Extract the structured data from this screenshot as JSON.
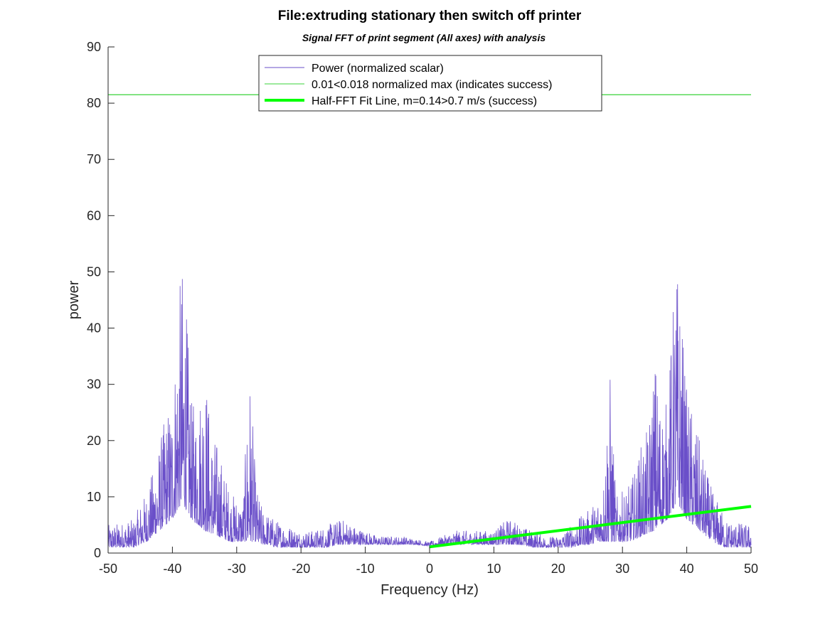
{
  "chart_data": {
    "type": "line",
    "title": "File:extruding stationary then switch off printer",
    "subtitle": "Signal FFT of print segment (All axes) with analysis",
    "xlabel": "Frequency (Hz)",
    "ylabel": "power",
    "xlim": [
      -50,
      50
    ],
    "ylim": [
      0,
      90
    ],
    "xticks": [
      -50,
      -40,
      -30,
      -20,
      -10,
      0,
      10,
      20,
      30,
      40,
      50
    ],
    "yticks": [
      0,
      10,
      20,
      30,
      40,
      50,
      60,
      70,
      80,
      90
    ],
    "grid": false,
    "legend_position": "top-center",
    "series": [
      {
        "name": "Power (normalized scalar)",
        "color": "#6a4fc9",
        "style": "thin-line",
        "envelope": {
          "x": [
            -50,
            -46,
            -45,
            -44,
            -43,
            -42,
            -41,
            -40,
            -39,
            -38.5,
            -38,
            -37,
            -36,
            -35,
            -34,
            -33,
            -32,
            -31,
            -30,
            -29,
            -28,
            -27,
            -26,
            -25,
            -24,
            -22,
            -20,
            -18,
            -16,
            -14,
            -13,
            -12,
            -10,
            -8,
            -6,
            -4,
            -2,
            0,
            2,
            4,
            6,
            8,
            10,
            12,
            13,
            14,
            16,
            18,
            20,
            22,
            24,
            25,
            26,
            27,
            28,
            29,
            30,
            31,
            32,
            33,
            34,
            35,
            36,
            37,
            38,
            38.5,
            39,
            40,
            41,
            42,
            43,
            44,
            45,
            46,
            50
          ],
          "peak": [
            5,
            6,
            9,
            11,
            15,
            20,
            25,
            29,
            46,
            52,
            47,
            27,
            27,
            36,
            22,
            20,
            15,
            11,
            10,
            9,
            34,
            12,
            8,
            7,
            6,
            5,
            4,
            4,
            5,
            6,
            6,
            5,
            4,
            3,
            3,
            3,
            2.5,
            2,
            3,
            4,
            4,
            4,
            4,
            6,
            6,
            5,
            4,
            3,
            3,
            5,
            7,
            8,
            10,
            12,
            34,
            10,
            11,
            12,
            15,
            20,
            22,
            36,
            27,
            27,
            47,
            52,
            46,
            29,
            25,
            20,
            15,
            11,
            9,
            6,
            5
          ],
          "floor": [
            1,
            1,
            1.5,
            2,
            3,
            4,
            5,
            6,
            8,
            9,
            8,
            6,
            5,
            4,
            3.5,
            3,
            2.5,
            2,
            2,
            2,
            2,
            2,
            1.5,
            1.5,
            1,
            1,
            1,
            1,
            1,
            1.5,
            1.5,
            1.5,
            1.5,
            1.5,
            1.5,
            1.5,
            1.5,
            1.2,
            1.5,
            1.5,
            1.5,
            1.5,
            1.5,
            1.5,
            1.5,
            1.5,
            1,
            1,
            1,
            1,
            1.5,
            1.5,
            2,
            2,
            2,
            2,
            2,
            2,
            2.5,
            3,
            3.5,
            4,
            5,
            6,
            8,
            9,
            8,
            6,
            5,
            4,
            3,
            2,
            1.5,
            1,
            1
          ]
        }
      },
      {
        "name": "0.01<0.018 normalized max (indicates success)",
        "color": "#39d339",
        "style": "thin-line",
        "x": [
          -50,
          50
        ],
        "y": [
          81.5,
          81.5
        ]
      },
      {
        "name": "Half-FFT Fit Line, m=0.14>0.7 m/s (success)",
        "color": "#00ff00",
        "style": "thick-line",
        "x": [
          0,
          50
        ],
        "y": [
          1.1,
          8.3
        ]
      }
    ]
  }
}
